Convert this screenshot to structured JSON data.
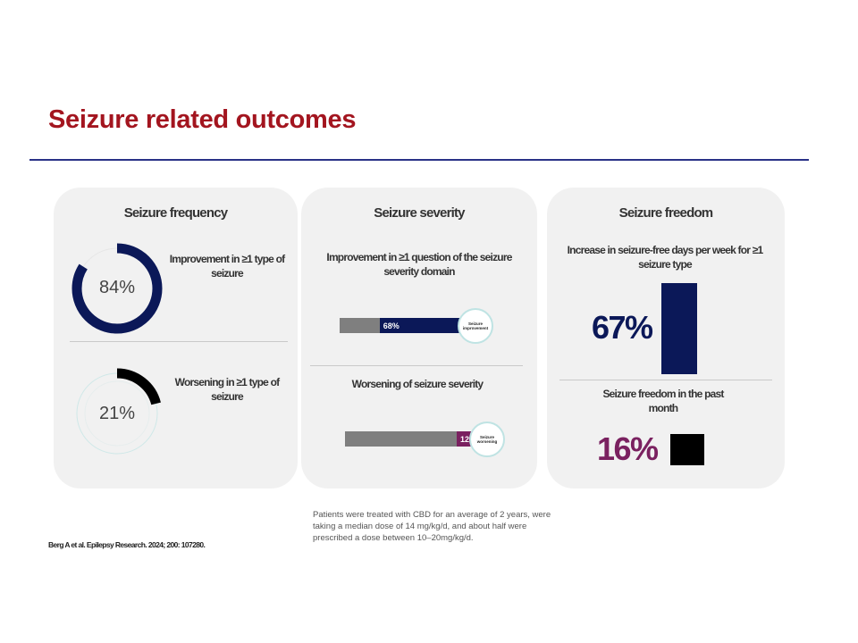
{
  "title": "Seizure related outcomes",
  "colors": {
    "title": "#a3151f",
    "navy": "#0b1858",
    "purple": "#7a2160",
    "gray": "#7f7f7f",
    "black": "#000000"
  },
  "frequency": {
    "title": "Seizure frequency",
    "improvement": {
      "label": "Improvement in ≥1 type of seizure",
      "value_text": "84%",
      "fraction": 0.84
    },
    "worsening": {
      "label": "Worsening in ≥1 type of seizure",
      "value_text": "21%",
      "fraction": 0.21
    }
  },
  "severity": {
    "title": "Seizure severity",
    "improvement": {
      "label": "Improvement in ≥1 question of the seizure severity domain",
      "value_text": "68%",
      "fraction": 0.68,
      "badge": "Seizure improvement"
    },
    "worsening": {
      "label": "Worsening of seizure severity",
      "value_text": "12%",
      "fraction": 0.12,
      "badge": "Seizure worsening"
    }
  },
  "freedom": {
    "title": "Seizure freedom",
    "increase": {
      "label": "Increase in seizure-free days per week for ≥1 seizure type",
      "value_text": "67%",
      "value": 67
    },
    "past_month": {
      "label": "Seizure freedom in the past month",
      "value_text": "16%",
      "value": 16
    }
  },
  "note": "Patients were treated with CBD for an average of 2 years, were taking a median dose of 14 mg/kg/d, and about half were prescribed a dose between 10–20mg/kg/d.",
  "reference": "Berg A et al. Epilepsy Research. 2024; 200: 107280."
}
